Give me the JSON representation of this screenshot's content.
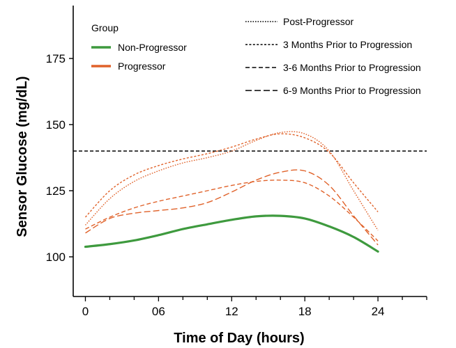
{
  "chart_data": {
    "type": "line",
    "xlabel": "Time of Day (hours)",
    "ylabel": "Sensor Glucose (mg/dL)",
    "xlim": [
      -1,
      28
    ],
    "ylim": [
      85,
      195
    ],
    "x_ticks": [
      0,
      6,
      12,
      18,
      24
    ],
    "x_tick_labels": [
      "0",
      "06",
      "12",
      "18",
      "24"
    ],
    "y_ticks": [
      100,
      125,
      150,
      175
    ],
    "reference_line": {
      "y": 140,
      "style": "dashed",
      "color": "#000000"
    },
    "grid": false,
    "legend": {
      "title": "Group",
      "placement": "top-left",
      "group_entries": [
        {
          "label": "Non-Progressor",
          "color": "#3e9a3e"
        },
        {
          "label": "Progressor",
          "color": "#e0622a"
        }
      ],
      "linetype_entries": [
        {
          "label": "Post-Progressor",
          "dash": "dotted"
        },
        {
          "label": "3 Months Prior to Progression",
          "dash": "short-dash"
        },
        {
          "label": "3-6 Months Prior to Progression",
          "dash": "medium-dash"
        },
        {
          "label": "6-9 Months Prior to Progression",
          "dash": "long-dash"
        }
      ]
    },
    "series": [
      {
        "name": "Non-Progressor",
        "group": "Non-Progressor",
        "color": "#3e9a3e",
        "dash": "solid",
        "x": [
          0,
          2,
          4,
          6,
          8,
          10,
          12,
          14,
          16,
          18,
          20,
          22,
          24
        ],
        "y": [
          103.8,
          104.8,
          106.2,
          108.2,
          110.5,
          112.3,
          114.0,
          115.3,
          115.5,
          114.5,
          111.5,
          107.5,
          102.0
        ]
      },
      {
        "name": "Post-Progressor",
        "group": "Progressor",
        "color": "#e0622a",
        "dash": "dotted",
        "x": [
          0,
          2,
          4,
          6,
          8,
          10,
          12,
          14,
          16,
          18,
          20,
          22,
          24
        ],
        "y": [
          112.0,
          122.0,
          128.5,
          132.5,
          135.5,
          137.5,
          140.0,
          144.0,
          147.0,
          146.5,
          140.0,
          125.0,
          110.0
        ]
      },
      {
        "name": "3 Months Prior to Progression",
        "group": "Progressor",
        "color": "#e0622a",
        "dash": "short-dash",
        "x": [
          0,
          2,
          4,
          6,
          8,
          10,
          12,
          14,
          16,
          18,
          20,
          22,
          24
        ],
        "y": [
          115.0,
          125.0,
          131.0,
          134.5,
          137.0,
          139.0,
          141.5,
          144.5,
          146.5,
          145.0,
          139.5,
          128.0,
          117.0
        ]
      },
      {
        "name": "3-6 Months Prior to Progression",
        "group": "Progressor",
        "color": "#e0622a",
        "dash": "medium-dash",
        "x": [
          0,
          2,
          4,
          6,
          8,
          10,
          12,
          14,
          16,
          18,
          20,
          22,
          24
        ],
        "y": [
          110.5,
          115.0,
          118.5,
          121.0,
          123.0,
          125.0,
          127.0,
          128.5,
          129.0,
          128.0,
          123.0,
          115.0,
          106.0
        ]
      },
      {
        "name": "6-9 Months Prior to Progression",
        "group": "Progressor",
        "color": "#e0622a",
        "dash": "long-dash",
        "x": [
          0,
          2,
          4,
          6,
          8,
          10,
          12,
          14,
          16,
          18,
          20,
          22,
          24
        ],
        "y": [
          109.0,
          114.5,
          116.5,
          117.5,
          118.5,
          120.5,
          124.5,
          129.0,
          132.0,
          132.5,
          127.0,
          115.5,
          104.5
        ]
      }
    ]
  }
}
